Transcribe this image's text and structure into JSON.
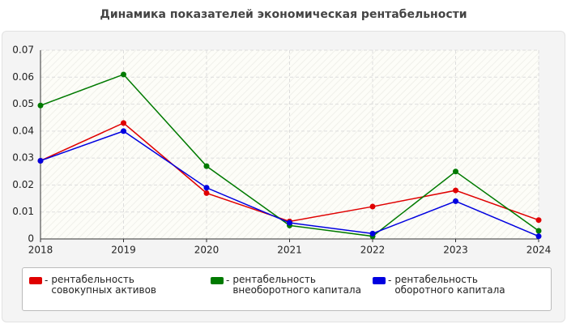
{
  "chart_data": {
    "type": "line",
    "title": "Динамика показателей экономическая рентабельности",
    "categories": [
      "2018",
      "2019",
      "2020",
      "2021",
      "2022",
      "2023",
      "2024"
    ],
    "series": [
      {
        "name": "рентабельность совокупных активов",
        "color": "#e00000",
        "values": [
          0.029,
          0.043,
          0.017,
          0.0065,
          0.012,
          0.018,
          0.007
        ]
      },
      {
        "name": "рентабельность внеоборотного капитала",
        "color": "#007a00",
        "values": [
          0.0495,
          0.061,
          0.027,
          0.005,
          0.001,
          0.025,
          0.003
        ]
      },
      {
        "name": "рентабельность оборотного капитала",
        "color": "#0000e0",
        "values": [
          0.029,
          0.04,
          0.019,
          0.006,
          0.002,
          0.014,
          0.001
        ]
      }
    ],
    "ylim": [
      0,
      0.07
    ],
    "yticks": [
      0,
      0.01,
      0.02,
      0.03,
      0.04,
      0.05,
      0.06,
      0.07
    ],
    "grid": true
  }
}
